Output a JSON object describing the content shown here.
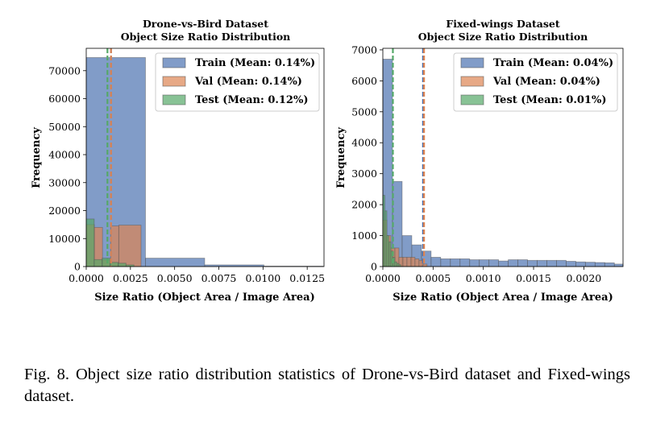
{
  "chart_data": [
    {
      "type": "histogram",
      "title": [
        "Drone-vs-Bird Dataset",
        "Object Size Ratio Distribution"
      ],
      "xlabel": "Size Ratio (Object Area / Image Area)",
      "ylabel": "Frequency",
      "xlim": [
        0,
        0.01345
      ],
      "ylim": [
        0,
        78000
      ],
      "xticks": [
        0,
        0.0025,
        0.005,
        0.0075,
        0.01,
        0.0125
      ],
      "xtick_labels": [
        "0.0000",
        "0.0025",
        "0.0050",
        "0.0075",
        "0.0100",
        "0.0125"
      ],
      "yticks": [
        0,
        10000,
        20000,
        30000,
        40000,
        50000,
        60000,
        70000
      ],
      "ytick_labels": [
        "0",
        "10000",
        "20000",
        "30000",
        "40000",
        "50000",
        "60000",
        "70000"
      ],
      "legend_position": "top-right",
      "series": [
        {
          "name": "Train",
          "legend": "Train (Mean: 0.14%)",
          "color": "#4c72b0",
          "mean": 0.0014,
          "bins": [
            [
              0,
              0.00335,
              74700
            ],
            [
              0.00335,
              0.0067,
              3000
            ],
            [
              0.0067,
              0.01005,
              600
            ],
            [
              0.01005,
              0.0134,
              150
            ]
          ]
        },
        {
          "name": "Val",
          "legend": "Val (Mean: 0.14%)",
          "color": "#dd8452",
          "mean": 0.0014,
          "bins": [
            [
              0,
              0.00046,
              15000
            ],
            [
              0.00046,
              0.00092,
              14000
            ],
            [
              0.00092,
              0.00138,
              2400
            ],
            [
              0.00138,
              0.00184,
              14500
            ],
            [
              0.00184,
              0.0031,
              14800
            ]
          ]
        },
        {
          "name": "Test",
          "legend": "Test (Mean: 0.12%)",
          "color": "#55a868",
          "mean": 0.0012,
          "bins": [
            [
              0,
              0.00045,
              17000
            ],
            [
              0.00045,
              0.0009,
              2500
            ],
            [
              0.0009,
              0.00135,
              3000
            ],
            [
              0.00135,
              0.0018,
              1500
            ],
            [
              0.0018,
              0.00225,
              1200
            ],
            [
              0.00225,
              0.0027,
              600
            ]
          ]
        }
      ]
    },
    {
      "type": "histogram",
      "title": [
        "Fixed-wings Dataset",
        "Object Size Ratio Distribution"
      ],
      "xlabel": "Size Ratio (Object Area / Image Area)",
      "ylabel": "Frequency",
      "xlim": [
        0,
        0.00239
      ],
      "ylim": [
        0,
        7050
      ],
      "xticks": [
        0,
        0.0005,
        0.001,
        0.0015,
        0.002
      ],
      "xtick_labels": [
        "0.0000",
        "0.0005",
        "0.0010",
        "0.0015",
        "0.0020"
      ],
      "yticks": [
        0,
        1000,
        2000,
        3000,
        4000,
        5000,
        6000,
        7000
      ],
      "ytick_labels": [
        "0",
        "1000",
        "2000",
        "3000",
        "4000",
        "5000",
        "6000",
        "7000"
      ],
      "legend_position": "top-right",
      "series": [
        {
          "name": "Train",
          "legend": "Train (Mean: 0.04%)",
          "color": "#4c72b0",
          "mean": 0.0004,
          "bins": [
            [
              0,
              9.6e-05,
              6700
            ],
            [
              9.6e-05,
              0.000192,
              2750
            ],
            [
              0.000192,
              0.000288,
              1000
            ],
            [
              0.000288,
              0.000384,
              700
            ],
            [
              0.000384,
              0.00048,
              500
            ],
            [
              0.00048,
              0.000576,
              300
            ],
            [
              0.000576,
              0.000672,
              250
            ],
            [
              0.000672,
              0.000768,
              250
            ],
            [
              0.000768,
              0.000864,
              250
            ],
            [
              0.000864,
              0.00096,
              220
            ],
            [
              0.00096,
              0.001056,
              220
            ],
            [
              0.001056,
              0.001152,
              220
            ],
            [
              0.001152,
              0.001248,
              180
            ],
            [
              0.001248,
              0.001344,
              220
            ],
            [
              0.001344,
              0.00144,
              220
            ],
            [
              0.00144,
              0.001536,
              200
            ],
            [
              0.001536,
              0.001632,
              200
            ],
            [
              0.001632,
              0.001728,
              200
            ],
            [
              0.001728,
              0.001824,
              200
            ],
            [
              0.001824,
              0.00192,
              170
            ],
            [
              0.00192,
              0.002016,
              150
            ],
            [
              0.002016,
              0.002112,
              140
            ],
            [
              0.002112,
              0.002208,
              130
            ],
            [
              0.002208,
              0.002304,
              120
            ],
            [
              0.002304,
              0.0024,
              80
            ]
          ]
        },
        {
          "name": "Val",
          "legend": "Val (Mean: 0.04%)",
          "color": "#dd8452",
          "mean": 0.00041,
          "bins": [
            [
              0,
              4e-05,
              1500
            ],
            [
              4e-05,
              8e-05,
              1000
            ],
            [
              8e-05,
              0.00012,
              600
            ],
            [
              0.00012,
              0.00016,
              600
            ],
            [
              0.00016,
              0.0002,
              300
            ],
            [
              0.0002,
              0.00024,
              300
            ],
            [
              0.00024,
              0.00028,
              300
            ],
            [
              0.00028,
              0.00032,
              300
            ],
            [
              0.00032,
              0.00036,
              250
            ],
            [
              0.00036,
              0.0004,
              200
            ],
            [
              0.0004,
              0.00044,
              80
            ]
          ]
        },
        {
          "name": "Test",
          "legend": "Test (Mean: 0.01%)",
          "color": "#55a868",
          "mean": 0.0001,
          "bins": [
            [
              0,
              2e-05,
              2300
            ],
            [
              2e-05,
              4e-05,
              1800
            ],
            [
              4e-05,
              6e-05,
              1000
            ],
            [
              6e-05,
              8e-05,
              800
            ],
            [
              8e-05,
              0.0001,
              500
            ],
            [
              0.0001,
              0.00012,
              300
            ],
            [
              0.00012,
              0.00014,
              150
            ],
            [
              0.00014,
              0.00016,
              100
            ],
            [
              0.00016,
              0.00018,
              60
            ]
          ]
        }
      ]
    }
  ],
  "caption": {
    "label": "Fig. 8.",
    "text": "Object size ratio distribution statistics of Drone-vs-Bird dataset and Fixed-wings dataset."
  }
}
